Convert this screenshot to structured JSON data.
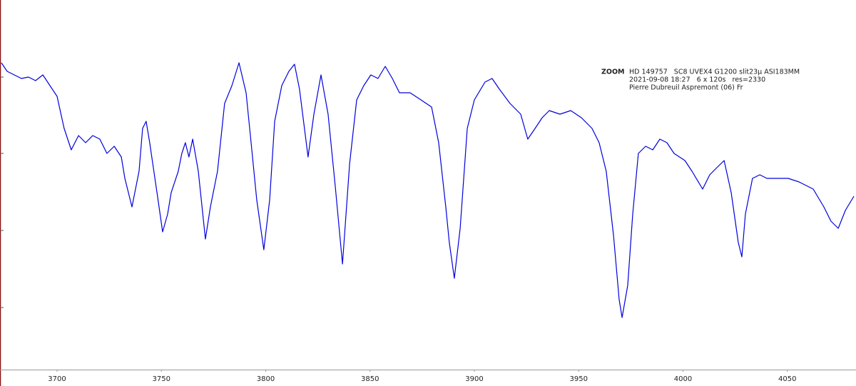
{
  "chart_data": {
    "type": "line",
    "title": "ZOOM",
    "annotations": [
      "HD 149757   SC8 UVEX4 G1200 slit23µ ASI183MM",
      "2021-09-08 18:27   6 x 120s   res=2330",
      "Pierre Dubreuil Aspremont (06) Fr"
    ],
    "x": [
      3673.3,
      3676.1,
      3679.5,
      3682.9,
      3686.3,
      3689.7,
      3693.2,
      3696.6,
      3700,
      3703.4,
      3706.8,
      3710.3,
      3713.7,
      3717.1,
      3720.5,
      3723.9,
      3727.4,
      3730.8,
      3732.5,
      3735.9,
      3739.3,
      3741.0,
      3742.7,
      3744.4,
      3747.9,
      3750.6,
      3753.0,
      3754.7,
      3758.1,
      3759.8,
      3761.5,
      3763.2,
      3765.0,
      3767.7,
      3771.1,
      3773.5,
      3776.9,
      3780.3,
      3783.8,
      3787.2,
      3790.6,
      3793.0,
      3795.7,
      3799.1,
      3801.9,
      3804.3,
      3807.7,
      3811.1,
      3813.8,
      3816.2,
      3820.3,
      3823.1,
      3826.5,
      3829.9,
      3833.3,
      3836.8,
      3840.2,
      3843.6,
      3847.0,
      3850.4,
      3853.8,
      3857.3,
      3860.7,
      3864.1,
      3869.2,
      3874.4,
      3879.5,
      3882.9,
      3886.3,
      3888.0,
      3890.4,
      3893.2,
      3896.6,
      3900.0,
      3905.1,
      3908.5,
      3912.0,
      3917.1,
      3922.2,
      3925.6,
      3929.1,
      3932.5,
      3935.9,
      3941.0,
      3946.2,
      3951.3,
      3956.4,
      3959.8,
      3963.2,
      3966.7,
      3969.4,
      3970.8,
      3973.5,
      3975.9,
      3978.6,
      3982.1,
      3985.5,
      3988.9,
      3992.3,
      3995.7,
      4000.9,
      4004.3,
      4009.4,
      4012.8,
      4016.2,
      4019.7,
      4023.1,
      4026.5,
      4028.2,
      4029.9,
      4033.3,
      4036.8,
      4040.2,
      4045.3,
      4050.4,
      4055.6,
      4062.4,
      4067.5,
      4070.9,
      4074.4,
      4077.8,
      4081.9
    ],
    "series": [
      {
        "color": "#0000dd",
        "values": [
          430,
          418,
          413,
          408,
          410,
          405,
          413,
          398,
          383,
          338,
          308,
          328,
          318,
          328,
          323,
          303,
          313,
          298,
          268,
          228,
          278,
          338,
          348,
          318,
          248,
          193,
          218,
          248,
          278,
          303,
          318,
          298,
          323,
          278,
          183,
          228,
          278,
          373,
          398,
          430,
          388,
          318,
          238,
          168,
          238,
          348,
          398,
          418,
          428,
          393,
          298,
          358,
          413,
          358,
          258,
          148,
          288,
          378,
          398,
          413,
          408,
          425,
          408,
          388,
          388,
          378,
          368,
          318,
          228,
          178,
          128,
          198,
          338,
          378,
          403,
          408,
          393,
          373,
          358,
          323,
          338,
          353,
          363,
          358,
          363,
          353,
          338,
          318,
          278,
          188,
          98,
          73,
          118,
          218,
          303,
          313,
          308,
          323,
          318,
          303,
          293,
          278,
          253,
          273,
          283,
          293,
          248,
          178,
          158,
          218,
          268,
          273,
          268,
          268,
          268,
          263,
          253,
          228,
          208,
          198,
          223,
          243
        ]
      }
    ],
    "xlim": [
      3673,
      4082
    ],
    "ylim": [
      0,
      518
    ],
    "xticks": [
      3700,
      3750,
      3800,
      3850,
      3900,
      3950,
      4000,
      4050
    ]
  }
}
